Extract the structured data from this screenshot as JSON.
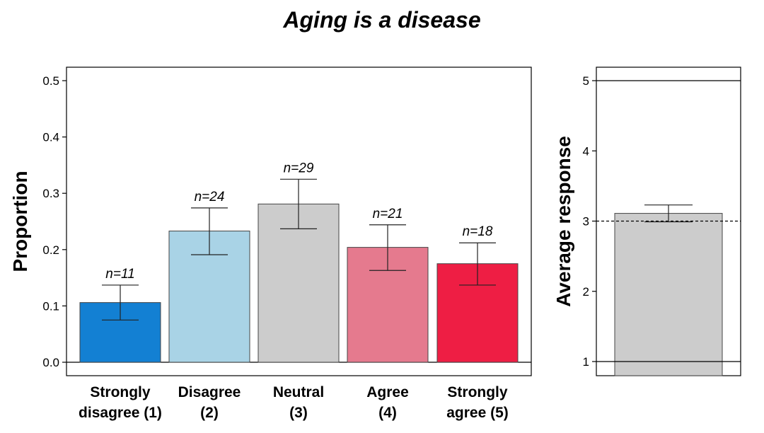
{
  "title": "Aging is a disease",
  "chart_data": [
    {
      "type": "bar",
      "ylabel": "Proportion",
      "ylim": [
        0,
        0.5
      ],
      "yticks": [
        "0.0",
        "0.1",
        "0.2",
        "0.3",
        "0.4",
        "0.5"
      ],
      "categories": [
        {
          "line1": "Strongly",
          "line2": "disagree (1)"
        },
        {
          "line1": "Disagree",
          "line2": "(2)"
        },
        {
          "line1": "Neutral",
          "line2": "(3)"
        },
        {
          "line1": "Agree",
          "line2": "(4)"
        },
        {
          "line1": "Strongly",
          "line2": "agree (5)"
        }
      ],
      "values": [
        0.106,
        0.233,
        0.281,
        0.204,
        0.175
      ],
      "error_low": [
        0.075,
        0.191,
        0.237,
        0.163,
        0.137
      ],
      "error_high": [
        0.137,
        0.274,
        0.325,
        0.244,
        0.212
      ],
      "annotations": [
        "n=11",
        "n=24",
        "n=29",
        "n=21",
        "n=18"
      ],
      "colors": [
        "#1380d3",
        "#a9d3e6",
        "#cccccc",
        "#e57a8e",
        "#ee1e44"
      ]
    },
    {
      "type": "bar",
      "ylabel": "Average response",
      "ylim": [
        0.8,
        5.2
      ],
      "yticks": [
        "1",
        "2",
        "3",
        "4",
        "5"
      ],
      "values": [
        3.11
      ],
      "error_low": [
        2.99
      ],
      "error_high": [
        3.23
      ],
      "reference_line": 3,
      "colors": [
        "#cccccc"
      ]
    }
  ]
}
